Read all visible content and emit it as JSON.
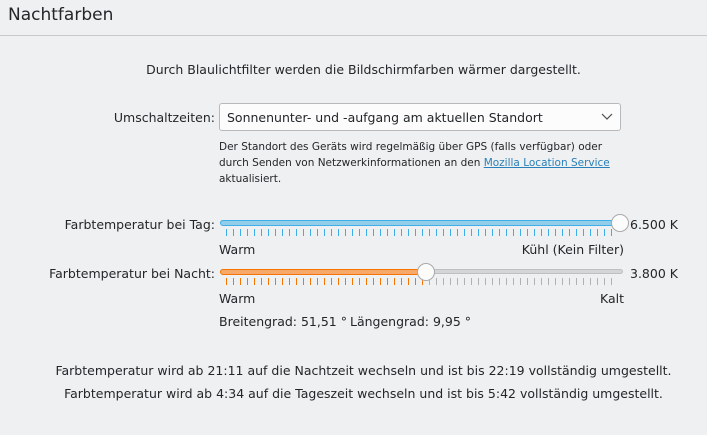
{
  "header": {
    "title": "Nachtfarben"
  },
  "intro": "Durch Blaulichtfilter werden die Bildschirmfarben wärmer dargestellt.",
  "switch_times": {
    "label": "Umschaltzeiten:",
    "selected": "Sonnenunter- und -aufgang am aktuellen Standort",
    "icon": "chevron-down-icon"
  },
  "help": {
    "line1": "Der Standort des Geräts wird regelmäßig über GPS (falls verfügbar) oder",
    "line2_prefix": "durch Senden von Netzwerkinformationen an den ",
    "link": "Mozilla Location Service",
    "line3": "aktualisiert."
  },
  "day_temp": {
    "label": "Farbtemperatur bei Tag:",
    "value": "6.500 K",
    "min_label": "Warm",
    "max_label": "Kühl (Kein Filter)",
    "percent": 100,
    "color": "#3daee9"
  },
  "night_temp": {
    "label": "Farbtemperatur bei Nacht:",
    "value": "3.800 K",
    "min_label": "Warm",
    "max_label": "Kalt",
    "percent": 51,
    "color": "#f67400"
  },
  "coords": {
    "latitude": "Breitengrad: 51,51 °",
    "longitude": "Längengrad: 9,95 °"
  },
  "schedule": {
    "night": "Farbtemperatur wird ab 21:11 auf die Nachtzeit wechseln und ist bis 22:19 vollständig umgestellt.",
    "day": "Farbtemperatur wird ab 4:34 auf die Tageszeit wechseln und ist bis 5:42 vollständig umgestellt."
  }
}
